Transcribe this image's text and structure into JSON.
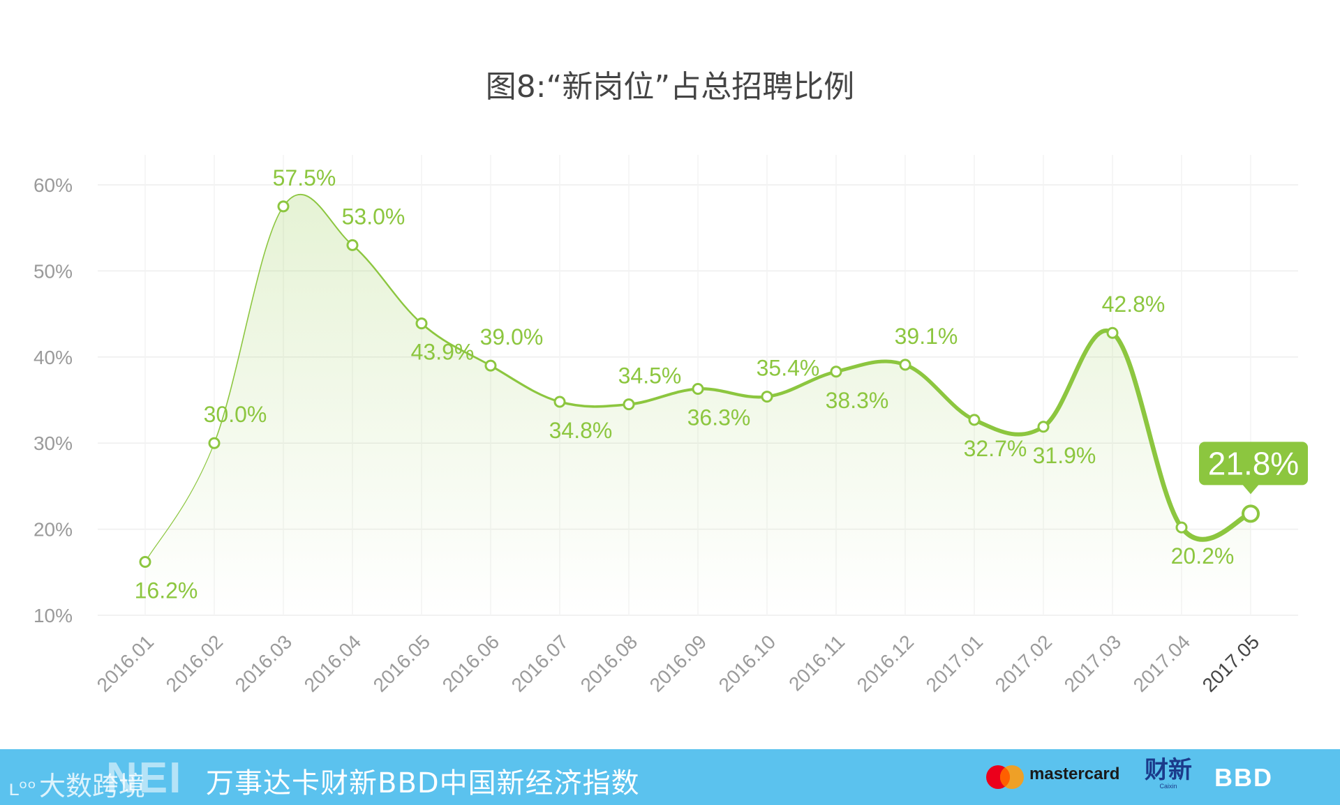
{
  "chart_data": {
    "type": "line",
    "title": "图8:“新岗位”占总招聘比例",
    "categories": [
      "2016.01",
      "2016.02",
      "2016.03",
      "2016.04",
      "2016.05",
      "2016.06",
      "2016.07",
      "2016.08",
      "2016.09",
      "2016.10",
      "2016.11",
      "2016.12",
      "2017.01",
      "2017.02",
      "2017.03",
      "2017.04",
      "2017.05"
    ],
    "values": [
      16.2,
      30.0,
      57.5,
      53.0,
      43.9,
      39.0,
      34.8,
      34.5,
      36.3,
      35.4,
      38.3,
      39.1,
      32.7,
      31.9,
      42.8,
      20.2,
      21.8
    ],
    "labels": [
      "16.2%",
      "30.0%",
      "57.5%",
      "53.0%",
      "43.9%",
      "39.0%",
      "34.8%",
      "34.5%",
      "36.3%",
      "35.4%",
      "38.3%",
      "39.1%",
      "32.7%",
      "31.9%",
      "42.8%",
      "20.2%",
      "21.8%"
    ],
    "yticks": [
      "10%",
      "20%",
      "30%",
      "40%",
      "50%",
      "60%"
    ],
    "ylim": [
      10,
      60
    ],
    "grid": true,
    "highlight": {
      "index": 16,
      "label": "21.8%"
    },
    "line_color": "#8cc63f",
    "area_fill": true
  },
  "footer": {
    "title": "万事达卡财新BBD中国新经济指数",
    "nei_logo": "NEI",
    "watermark": "大数跨境",
    "watermark_icon": "ʟᵒᵒ",
    "mastercard": "mastercard",
    "caixin": "财新",
    "caixin_sub": "Caixin",
    "bbd": "BBD",
    "bg_color": "#5bc2ee"
  }
}
